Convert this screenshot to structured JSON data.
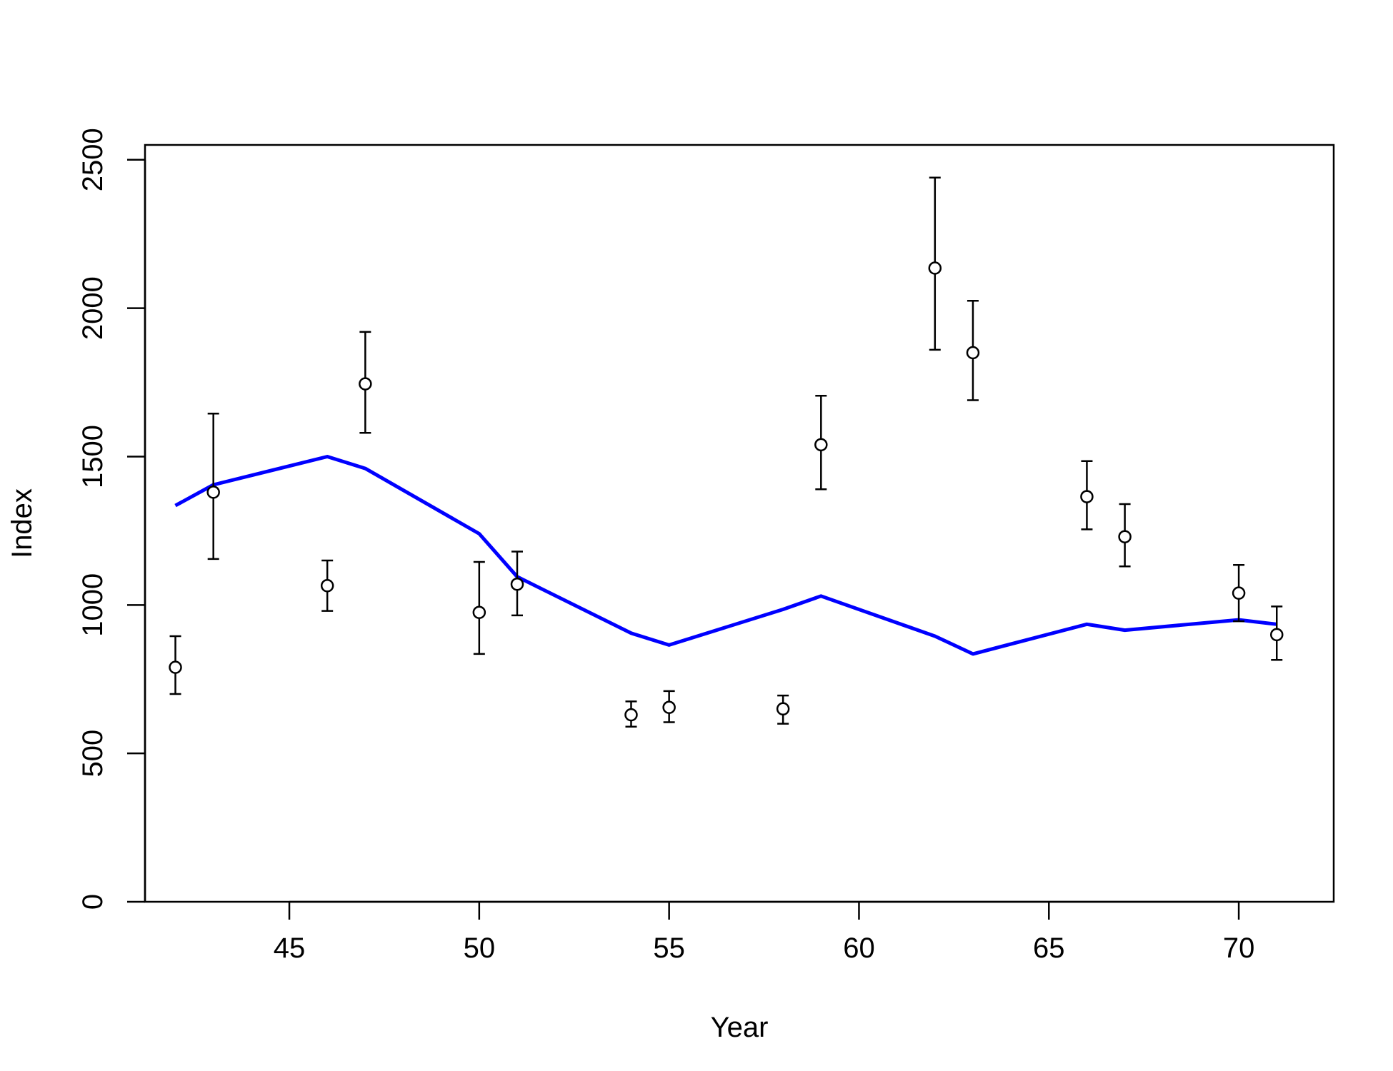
{
  "chart_data": {
    "type": "scatter",
    "title": "",
    "xlabel": "Year",
    "ylabel": "Index",
    "xlim": [
      41.2,
      72.5
    ],
    "ylim": [
      0,
      2550
    ],
    "x_ticks": [
      45,
      50,
      55,
      60,
      65,
      70
    ],
    "y_ticks": [
      0,
      500,
      1000,
      1500,
      2000,
      2500
    ],
    "grid": false,
    "legend": "none",
    "colors": {
      "observed": "#000000",
      "fitted": "#0000ff"
    },
    "observed": {
      "x": [
        42,
        43,
        46,
        47,
        50,
        51,
        54,
        55,
        58,
        59,
        62,
        63,
        66,
        67,
        70,
        71
      ],
      "y": [
        790,
        1380,
        1065,
        1745,
        975,
        1070,
        630,
        655,
        650,
        1540,
        2135,
        1850,
        1365,
        1230,
        1040,
        900
      ],
      "y_lower": [
        700,
        1155,
        980,
        1580,
        835,
        965,
        590,
        605,
        600,
        1390,
        1860,
        1690,
        1255,
        1130,
        945,
        815
      ],
      "y_upper": [
        895,
        1645,
        1150,
        1920,
        1145,
        1180,
        675,
        710,
        695,
        1705,
        2440,
        2025,
        1485,
        1340,
        1135,
        995
      ]
    },
    "fitted": {
      "x": [
        42,
        43,
        46,
        47,
        50,
        51,
        54,
        55,
        58,
        59,
        62,
        63,
        66,
        67,
        70,
        71
      ],
      "y": [
        1335,
        1405,
        1500,
        1460,
        1240,
        1095,
        905,
        865,
        985,
        1030,
        895,
        835,
        935,
        915,
        950,
        935
      ]
    }
  }
}
